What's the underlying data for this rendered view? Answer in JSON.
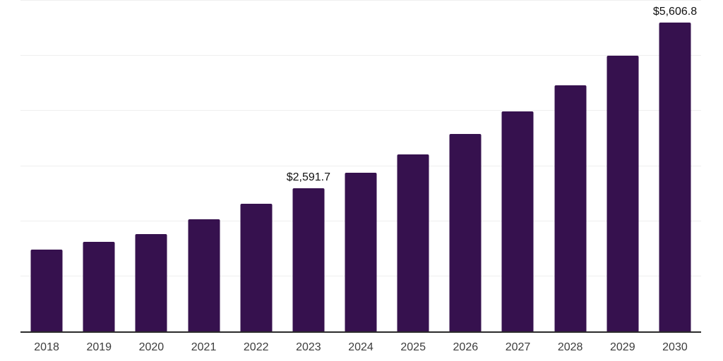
{
  "chart_data": {
    "type": "bar",
    "categories": [
      "2018",
      "2019",
      "2020",
      "2021",
      "2022",
      "2023",
      "2024",
      "2025",
      "2026",
      "2027",
      "2028",
      "2029",
      "2030"
    ],
    "values": [
      1490,
      1620,
      1770,
      2030,
      2320,
      2591.7,
      2880,
      3205,
      3580,
      3990,
      4460,
      5000,
      5606.8
    ],
    "data_labels": [
      {
        "category": "2023",
        "text": "$2,591.7"
      },
      {
        "category": "2030",
        "text": "$5,606.8"
      }
    ],
    "title": "",
    "xlabel": "",
    "ylabel": "",
    "ylim": [
      0,
      6000
    ],
    "gridline_step": 1000,
    "grid": true,
    "legend": false,
    "colors": {
      "bar": "#36114E",
      "gridline": "#EFEFEF",
      "axis_line": "#2B2B2B",
      "tick_label": "#3C3C3C",
      "data_label": "#111111",
      "background": "#FFFFFF"
    }
  }
}
